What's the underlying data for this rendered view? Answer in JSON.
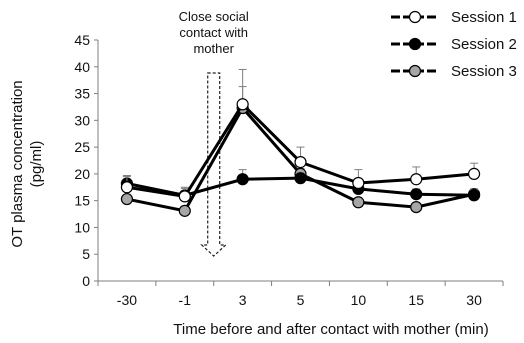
{
  "chart_data": {
    "type": "line",
    "title": "",
    "xlabel": "Time before and after contact with mother (min)",
    "ylabel_line1": "OT plasma concentration",
    "ylabel_line2": "(pg/ml)",
    "categories": [
      "-30",
      "-1",
      "3",
      "5",
      "10",
      "15",
      "30"
    ],
    "ylim": [
      0,
      45
    ],
    "yticks": [
      0,
      5,
      10,
      15,
      20,
      25,
      30,
      35,
      40,
      45
    ],
    "grid": false,
    "legend_position": "top-right",
    "annotation": {
      "lines": [
        "Close social",
        "contact with",
        "mother"
      ],
      "between_categories": [
        "-1",
        "3"
      ]
    },
    "series": [
      {
        "name": "Session 1",
        "marker_fill": "#ffffff",
        "values": [
          17.5,
          15.8,
          33.0,
          22.2,
          18.3,
          19.0,
          20.0
        ],
        "errors": [
          2.0,
          1.5,
          6.5,
          2.8,
          2.5,
          2.3,
          2.0
        ]
      },
      {
        "name": "Session 2",
        "marker_fill": "#000000",
        "values": [
          18.2,
          16.0,
          19.0,
          19.2,
          17.2,
          16.2,
          16.0
        ],
        "errors": [
          1.5,
          1.5,
          1.8,
          1.0,
          1.0,
          1.0,
          1.0
        ]
      },
      {
        "name": "Session 3",
        "marker_fill": "#a6a6a6",
        "values": [
          15.3,
          13.1,
          32.3,
          20.0,
          14.7,
          13.8,
          16.2
        ],
        "errors": [
          0,
          0,
          4.0,
          1.0,
          0,
          0,
          1.0
        ]
      }
    ]
  }
}
